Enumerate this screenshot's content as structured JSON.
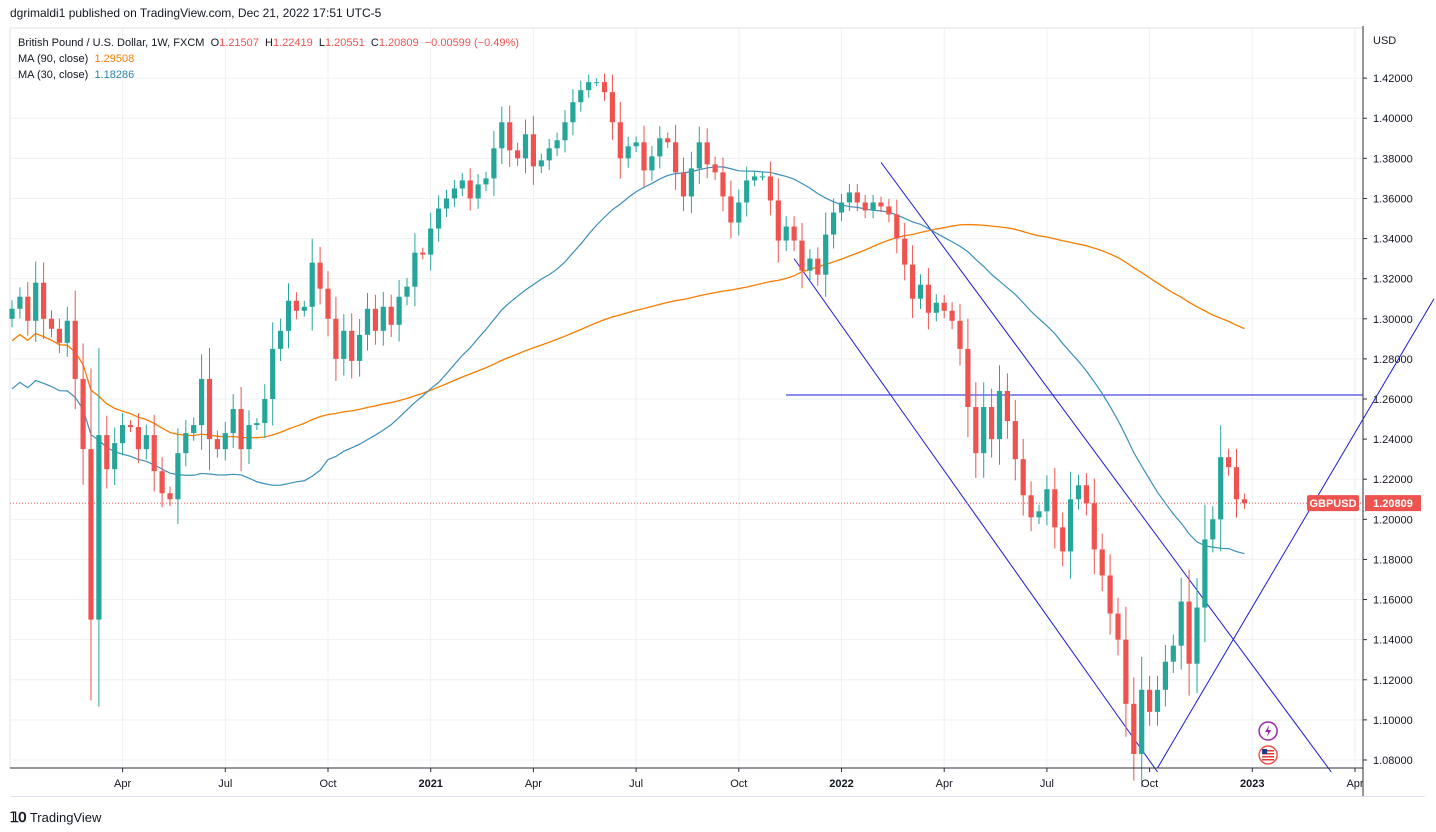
{
  "header": {
    "published": "dgrimaldi1 published on TradingView.com, Dec 21, 2022 17:51 UTC-5"
  },
  "legend": {
    "symbol": "British Pound / U.S. Dollar, 1W, FXCM",
    "open_label": "O",
    "open": "1.21507",
    "high_label": "H",
    "high": "1.22419",
    "low_label": "L",
    "low": "1.20551",
    "close_label": "C",
    "close": "1.20809",
    "change": "−0.00599 (−0.49%)",
    "ma90_label": "MA (90, close)",
    "ma90_value": "1.29508",
    "ma30_label": "MA (30, close)",
    "ma30_value": "1.18286"
  },
  "footer": {
    "brand": "TradingView"
  },
  "colors": {
    "up": "#26a69a",
    "down": "#ef5350",
    "ma90": "#f57c00",
    "ma30": "#3b8fb8",
    "trendline": "#1a1adb",
    "grid": "#eef0f3",
    "axis_text": "#131722"
  },
  "chart_data": {
    "type": "candlestick",
    "symbol": "GBPUSD",
    "timeframe": "1W",
    "currency": "USD",
    "last_price": "1.20809",
    "ylim": [
      1.076,
      1.445
    ],
    "y_ticks": [
      "1.42000",
      "1.40000",
      "1.38000",
      "1.36000",
      "1.34000",
      "1.32000",
      "1.30000",
      "1.28000",
      "1.26000",
      "1.24000",
      "1.22000",
      "1.20000",
      "1.18000",
      "1.16000",
      "1.14000",
      "1.12000",
      "1.10000",
      "1.08000"
    ],
    "x_ticks": [
      {
        "label": "Apr",
        "bar": 14,
        "bold": false
      },
      {
        "label": "Jul",
        "bar": 27,
        "bold": false
      },
      {
        "label": "Oct",
        "bar": 40,
        "bold": false
      },
      {
        "label": "2021",
        "bar": 53,
        "bold": true
      },
      {
        "label": "Apr",
        "bar": 66,
        "bold": false
      },
      {
        "label": "Jul",
        "bar": 79,
        "bold": false
      },
      {
        "label": "Oct",
        "bar": 92,
        "bold": false
      },
      {
        "label": "2022",
        "bar": 105,
        "bold": true
      },
      {
        "label": "Apr",
        "bar": 118,
        "bold": false
      },
      {
        "label": "Jul",
        "bar": 131,
        "bold": false
      },
      {
        "label": "Oct",
        "bar": 144,
        "bold": false
      },
      {
        "label": "2023",
        "bar": 157,
        "bold": true
      },
      {
        "label": "Apr",
        "bar": 170,
        "bold": false
      }
    ],
    "candles_close": [
      1.305,
      1.311,
      1.299,
      1.318,
      1.3,
      1.295,
      1.288,
      1.299,
      1.27,
      1.235,
      1.15,
      1.242,
      1.225,
      1.238,
      1.247,
      1.246,
      1.235,
      1.242,
      1.224,
      1.213,
      1.21,
      1.233,
      1.243,
      1.247,
      1.27,
      1.24,
      1.235,
      1.243,
      1.255,
      1.235,
      1.247,
      1.248,
      1.26,
      1.285,
      1.294,
      1.309,
      1.304,
      1.306,
      1.328,
      1.315,
      1.3,
      1.28,
      1.294,
      1.279,
      1.292,
      1.305,
      1.294,
      1.306,
      1.297,
      1.311,
      1.316,
      1.333,
      1.332,
      1.345,
      1.355,
      1.36,
      1.365,
      1.369,
      1.36,
      1.367,
      1.37,
      1.385,
      1.398,
      1.384,
      1.38,
      1.392,
      1.376,
      1.379,
      1.385,
      1.389,
      1.398,
      1.408,
      1.414,
      1.418,
      1.418,
      1.413,
      1.398,
      1.38,
      1.386,
      1.388,
      1.374,
      1.381,
      1.39,
      1.388,
      1.373,
      1.361,
      1.375,
      1.388,
      1.377,
      1.373,
      1.361,
      1.348,
      1.358,
      1.369,
      1.371,
      1.371,
      1.359,
      1.339,
      1.346,
      1.339,
      1.324,
      1.33,
      1.322,
      1.342,
      1.353,
      1.358,
      1.363,
      1.358,
      1.354,
      1.358,
      1.356,
      1.352,
      1.34,
      1.327,
      1.31,
      1.317,
      1.303,
      1.308,
      1.304,
      1.299,
      1.285,
      1.256,
      1.233,
      1.256,
      1.24,
      1.264,
      1.249,
      1.23,
      1.212,
      1.201,
      1.204,
      1.215,
      1.196,
      1.184,
      1.21,
      1.217,
      1.208,
      1.185,
      1.172,
      1.153,
      1.14,
      1.108,
      1.083,
      1.115,
      1.104,
      1.115,
      1.129,
      1.137,
      1.159,
      1.128,
      1.156,
      1.19,
      1.2,
      1.231,
      1.226,
      1.21,
      1.2081
    ],
    "ma90_start_value": 1.289,
    "ma90_end_value": 1.29508,
    "ma30_start_value": 1.265,
    "ma30_end_value": 1.18286,
    "horizontal_level": 1.262,
    "trendlines": [
      {
        "from": {
          "bar": 99,
          "price": 1.33
        },
        "to": {
          "bar": 145,
          "price": 1.074
        }
      },
      {
        "from": {
          "bar": 110,
          "price": 1.378
        },
        "to": {
          "bar": 167,
          "price": 1.074
        }
      },
      {
        "from": {
          "bar": 145,
          "price": 1.076
        },
        "to": {
          "bar": 180,
          "price": 1.31
        }
      }
    ]
  }
}
